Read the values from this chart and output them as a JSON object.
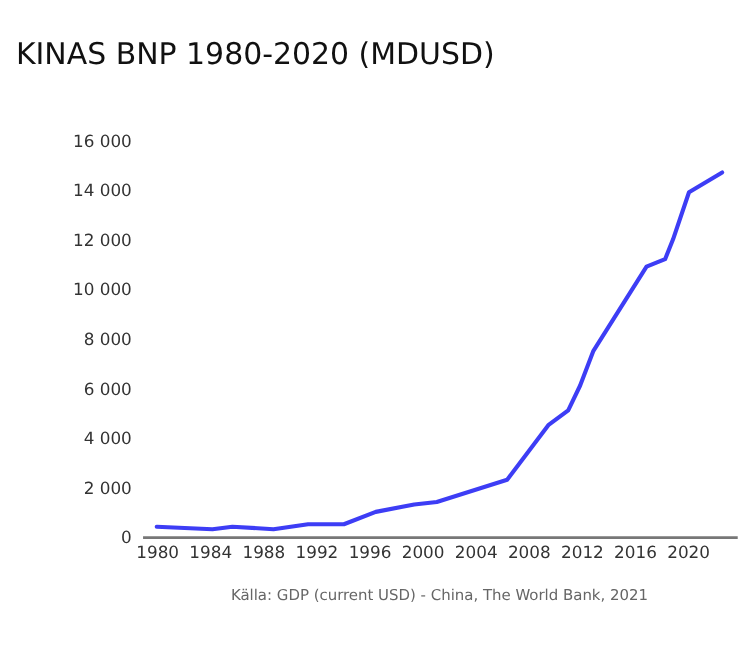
{
  "chart_data": {
    "type": "line",
    "title": "KINAS BNP 1980-2020 (MDUSD)",
    "x": [
      1980,
      1984.2,
      1985.7,
      1988.8,
      1991.4,
      1994.1,
      1996.5,
      1999.4,
      2001.1,
      2006.4,
      2009.5,
      2011.0,
      2011.9,
      2012.9,
      2016.9,
      2018.3,
      2018.9,
      2020.1,
      2022.6
    ],
    "series": [
      {
        "color": "#3d3df5",
        "values": [
          400,
          300,
          400,
          300,
          500,
          500,
          1000,
          1300,
          1400,
          2300,
          4500,
          5100,
          6100,
          7500,
          10900,
          11200,
          12000,
          13900,
          14700
        ]
      }
    ],
    "xlim": [
      1978.9,
      2023.7
    ],
    "xticks": [
      1980,
      1984,
      1988,
      1992,
      1996,
      2000,
      2004,
      2008,
      2012,
      2016,
      2020
    ],
    "ylim": [
      0,
      16000
    ],
    "yticks": [
      0,
      {
        "value": 2000,
        "label": "2 000"
      },
      {
        "value": 4000,
        "label": "4 000"
      },
      {
        "value": 6000,
        "label": "6 000"
      },
      {
        "value": 8000,
        "label": "8 000"
      },
      {
        "value": 10000,
        "label": "10 000"
      },
      {
        "value": 12000,
        "label": "12 000"
      },
      {
        "value": 14000,
        "label": "14 000"
      },
      {
        "value": 16000,
        "label": "16 000"
      }
    ],
    "grid": false,
    "marker": "none",
    "line_style": "solid",
    "annotations": [
      "Källa: GDP (current USD) - China, The World Bank, 2021"
    ]
  }
}
